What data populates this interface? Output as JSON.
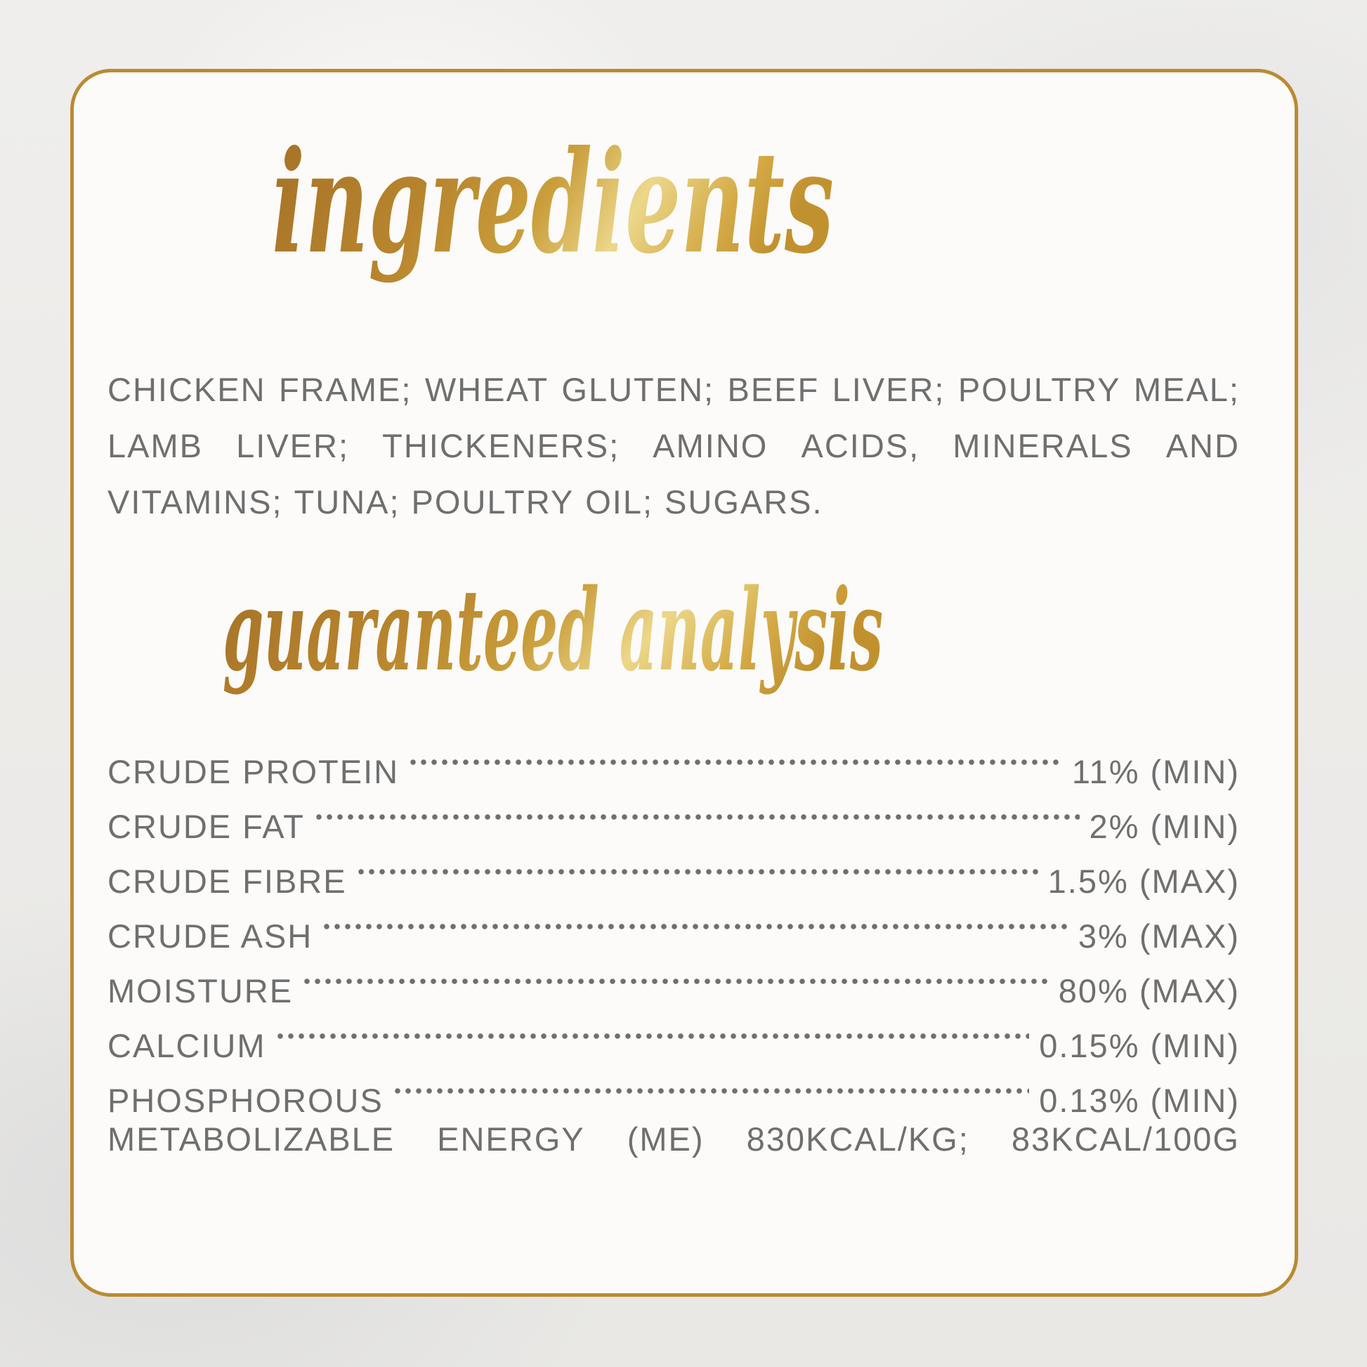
{
  "label": {
    "ingredients_title": "ingredients",
    "ingredients_lines": [
      {
        "justify": true,
        "words": [
          "CHICKEN",
          "FRAME;",
          "WHEAT",
          "GLUTEN;",
          "BEEF",
          "LIVER;",
          "POULTRY",
          "MEAL;"
        ]
      },
      {
        "justify": true,
        "words": [
          "LAMB",
          "LIVER;",
          "THICKENERS;",
          "AMINO",
          "ACIDS,",
          "MINERALS",
          "AND"
        ]
      },
      {
        "justify": false,
        "words": [
          "VITAMINS;",
          "TUNA;",
          "POULTRY",
          "OIL;",
          "SUGARS."
        ]
      }
    ],
    "analysis_title": "guaranteed analysis",
    "analysis_rows": [
      {
        "label": "CRUDE PROTEIN",
        "value": "11% (MIN)"
      },
      {
        "label": "CRUDE FAT",
        "value": "2% (MIN)"
      },
      {
        "label": "CRUDE FIBRE",
        "value": "1.5% (MAX)"
      },
      {
        "label": "CRUDE ASH",
        "value": "3% (MAX)"
      },
      {
        "label": "MOISTURE",
        "value": "80% (MAX)"
      },
      {
        "label": "CALCIUM",
        "value": "0.15% (MIN)"
      },
      {
        "label": "PHOSPHOROUS",
        "value": "0.13% (MIN)"
      }
    ],
    "energy_row_words": [
      "METABOLIZABLE",
      "ENERGY",
      "(ME)",
      "830KCAL/KG;",
      "83KCAL/100G"
    ],
    "colors": {
      "border_gold": "#bb8a33",
      "script_gold_dark": "#a57127",
      "script_gold_mid": "#c99d3a",
      "script_gold_light": "#ecd78a",
      "body_text_gray": "#6f6f6f",
      "card_background": "#fcfbf9",
      "page_background": "#edebe8"
    }
  }
}
